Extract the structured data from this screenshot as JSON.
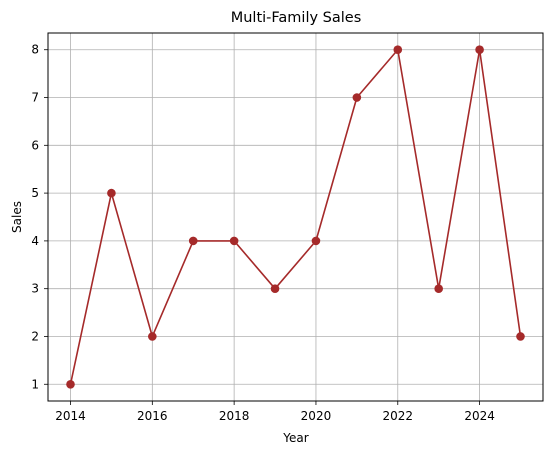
{
  "chart_data": {
    "type": "line",
    "title": "Multi-Family Sales",
    "xlabel": "Year",
    "ylabel": "Sales",
    "xlim": [
      2013.45,
      2025.55
    ],
    "ylim": [
      0.65,
      8.35
    ],
    "xticks": [
      2014,
      2016,
      2018,
      2020,
      2022,
      2024
    ],
    "yticks": [
      1,
      2,
      3,
      4,
      5,
      6,
      7,
      8
    ],
    "grid": true,
    "legend": "none",
    "series": [
      {
        "color": "#a52a2a",
        "marker": "circle",
        "points": [
          {
            "x": 2014,
            "y": 1
          },
          {
            "x": 2015,
            "y": 5
          },
          {
            "x": 2016,
            "y": 2
          },
          {
            "x": 2017,
            "y": 4
          },
          {
            "x": 2018,
            "y": 4
          },
          {
            "x": 2019,
            "y": 3
          },
          {
            "x": 2020,
            "y": 4
          },
          {
            "x": 2021,
            "y": 7
          },
          {
            "x": 2022,
            "y": 8
          },
          {
            "x": 2023,
            "y": 3
          },
          {
            "x": 2024,
            "y": 8
          },
          {
            "x": 2025,
            "y": 2
          }
        ]
      }
    ]
  }
}
